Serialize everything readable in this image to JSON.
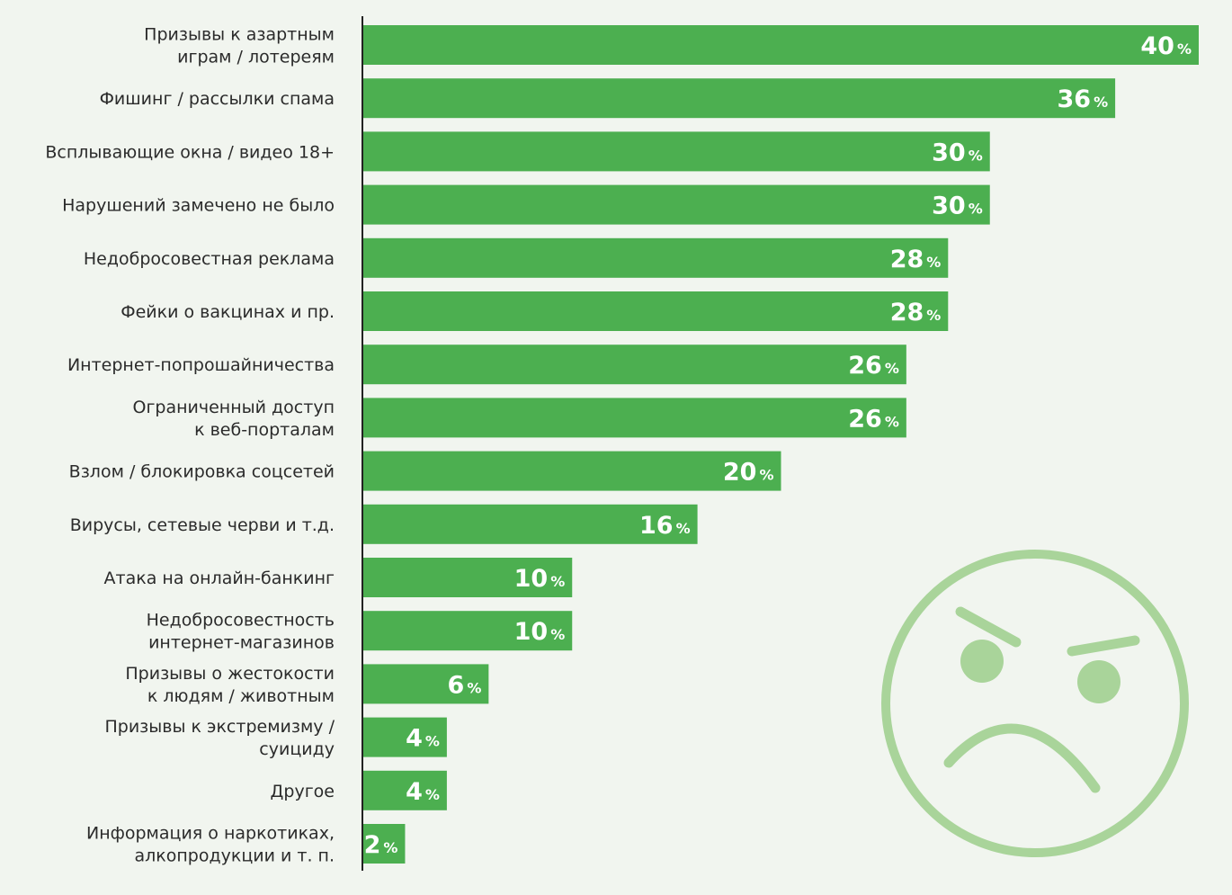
{
  "colors": {
    "bar": "#4caf50",
    "axis": "#222222",
    "background": "#f1f5ef",
    "face": "#a9d49a"
  },
  "decoration": {
    "icon": "angry-face-icon"
  },
  "chart_data": {
    "type": "bar",
    "orientation": "horizontal",
    "unit": "%",
    "xlim": [
      0,
      40
    ],
    "grid": false,
    "categories": [
      [
        "Призывы к азартным",
        "играм / лотереям"
      ],
      [
        "Фишинг / рассылки спама"
      ],
      [
        "Всплывающие окна / видео 18+"
      ],
      [
        "Нарушений замечено не было"
      ],
      [
        "Недобросовестная реклама"
      ],
      [
        "Фейки о вакцинах и пр."
      ],
      [
        "Интернет-попрошайничества"
      ],
      [
        "Ограниченный доступ",
        "к веб-порталам"
      ],
      [
        "Взлом / блокировка соцсетей"
      ],
      [
        "Вирусы, сетевые черви и т.д."
      ],
      [
        "Атака на онлайн-банкинг"
      ],
      [
        "Недобросовестность",
        "интернет-магазинов"
      ],
      [
        "Призывы о жестокости",
        "к людям / животным"
      ],
      [
        "Призывы к экстремизму /",
        "суициду"
      ],
      [
        "Другое"
      ],
      [
        "Информация о наркотиках,",
        "алкопродукции и т. п."
      ]
    ],
    "values": [
      40,
      36,
      30,
      30,
      28,
      28,
      26,
      26,
      20,
      16,
      10,
      10,
      6,
      4,
      4,
      2
    ]
  }
}
